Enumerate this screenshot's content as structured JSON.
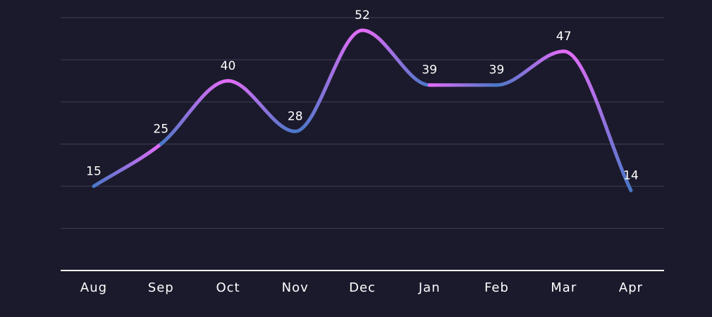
{
  "chart_data": {
    "type": "line",
    "categories": [
      "Aug",
      "Sep",
      "Oct",
      "Nov",
      "Dec",
      "Jan",
      "Feb",
      "Mar",
      "Apr"
    ],
    "values": [
      15,
      25,
      40,
      28,
      52,
      39,
      39,
      47,
      14
    ],
    "data_labels": [
      "15",
      "25",
      "40",
      "28",
      "52",
      "39",
      "39",
      "47",
      "14"
    ],
    "ylim": [
      -5,
      55
    ],
    "y_gridlines": [
      5,
      15,
      25,
      35,
      45,
      55
    ],
    "grid": true,
    "smooth": true,
    "legend": "none",
    "colors": {
      "background": "#1b1a2c",
      "line_high": "#e46cf7",
      "line_low": "#4a78c8",
      "grid": "#3a3950",
      "axis": "#ffffff",
      "text": "#ffffff"
    }
  }
}
